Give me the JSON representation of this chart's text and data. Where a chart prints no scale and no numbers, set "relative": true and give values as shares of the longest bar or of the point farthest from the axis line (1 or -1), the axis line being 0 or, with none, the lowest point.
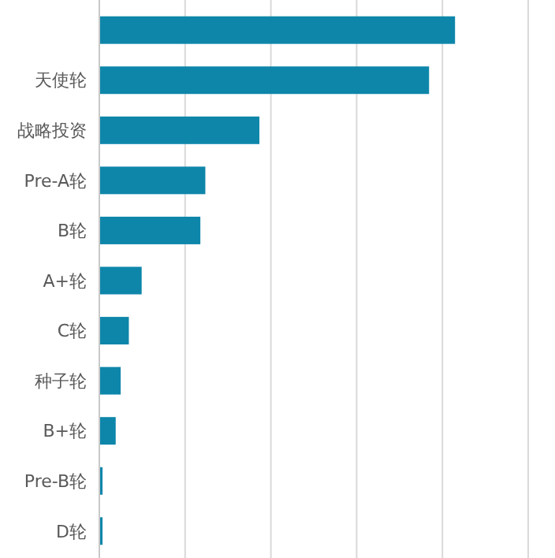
{
  "chart_data": {
    "type": "bar",
    "orientation": "horizontal",
    "relative": true,
    "grid": "x",
    "color": "#0e86aa",
    "categories": [
      null,
      "天使轮",
      "战略投资",
      "Pre-A轮",
      "B轮",
      "A+轮",
      "C轮",
      "种子轮",
      "B+轮",
      "Pre-B轮",
      "D轮"
    ],
    "values": [
      1,
      0.927,
      0.45,
      0.298,
      0.284,
      0.119,
      0.083,
      0.06,
      0.046,
      0.009,
      0.009
    ]
  }
}
